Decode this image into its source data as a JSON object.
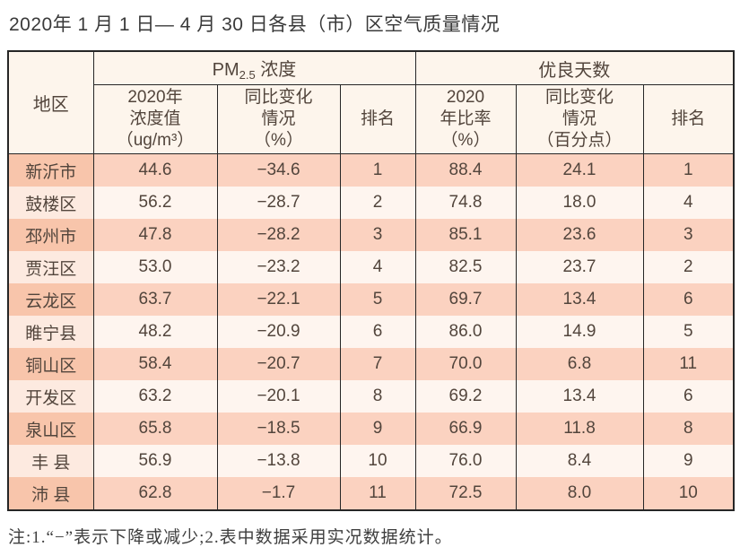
{
  "page": {
    "title": "2020年 1 月 1 日— 4 月 30 日各县（市）区空气质量情况",
    "footnote": "注:1.“−”表示下降或减少;2.表中数据采用实况数据统计。"
  },
  "colors": {
    "row_odd_region_bg": "#f8c5ab",
    "row_odd_data_bg": "#fbd2c0",
    "row_even_region_bg": "#fdeae0",
    "row_even_data_bg": "#fef5ef",
    "header_bg": "#fdf5ec",
    "border": "#262626",
    "text": "#52453c"
  },
  "table": {
    "corner_header": "地区",
    "groups": {
      "pm_prefix": "PM",
      "pm_sub": "2.5",
      "pm_suffix": " 浓度",
      "good_days": "优良天数"
    },
    "sub_headers": {
      "pm_value": "2020年\n浓度值\n（ug/m³）",
      "pm_change": "同比变化\n情况\n（%）",
      "pm_rank": "排名",
      "good_ratio": "2020\n年比率\n（%）",
      "good_change": "同比变化\n情况\n（百分点）",
      "good_rank": "排名"
    },
    "rows": [
      {
        "region": "新沂市",
        "pm_value": "44.6",
        "pm_change": "−34.6",
        "pm_rank": "1",
        "good_ratio": "88.4",
        "good_change": "24.1",
        "good_rank": "1"
      },
      {
        "region": "鼓楼区",
        "pm_value": "56.2",
        "pm_change": "−28.7",
        "pm_rank": "2",
        "good_ratio": "74.8",
        "good_change": "18.0",
        "good_rank": "4"
      },
      {
        "region": "邳州市",
        "pm_value": "47.8",
        "pm_change": "−28.2",
        "pm_rank": "3",
        "good_ratio": "85.1",
        "good_change": "23.6",
        "good_rank": "3"
      },
      {
        "region": "贾汪区",
        "pm_value": "53.0",
        "pm_change": "−23.2",
        "pm_rank": "4",
        "good_ratio": "82.5",
        "good_change": "23.7",
        "good_rank": "2"
      },
      {
        "region": "云龙区",
        "pm_value": "63.7",
        "pm_change": "−22.1",
        "pm_rank": "5",
        "good_ratio": "69.7",
        "good_change": "13.4",
        "good_rank": "6"
      },
      {
        "region": "睢宁县",
        "pm_value": "48.2",
        "pm_change": "−20.9",
        "pm_rank": "6",
        "good_ratio": "86.0",
        "good_change": "14.9",
        "good_rank": "5"
      },
      {
        "region": "铜山区",
        "pm_value": "58.4",
        "pm_change": "−20.7",
        "pm_rank": "7",
        "good_ratio": "70.0",
        "good_change": "6.8",
        "good_rank": "11"
      },
      {
        "region": "开发区",
        "pm_value": "63.2",
        "pm_change": "−20.1",
        "pm_rank": "8",
        "good_ratio": "69.2",
        "good_change": "13.4",
        "good_rank": "6"
      },
      {
        "region": "泉山区",
        "pm_value": "65.8",
        "pm_change": "−18.5",
        "pm_rank": "9",
        "good_ratio": "66.9",
        "good_change": "11.8",
        "good_rank": "8"
      },
      {
        "region": "丰 县",
        "pm_value": "56.9",
        "pm_change": "−13.8",
        "pm_rank": "10",
        "good_ratio": "76.0",
        "good_change": "8.4",
        "good_rank": "9"
      },
      {
        "region": "沛 县",
        "pm_value": "62.8",
        "pm_change": "−1.7",
        "pm_rank": "11",
        "good_ratio": "72.5",
        "good_change": "8.0",
        "good_rank": "10"
      }
    ]
  }
}
